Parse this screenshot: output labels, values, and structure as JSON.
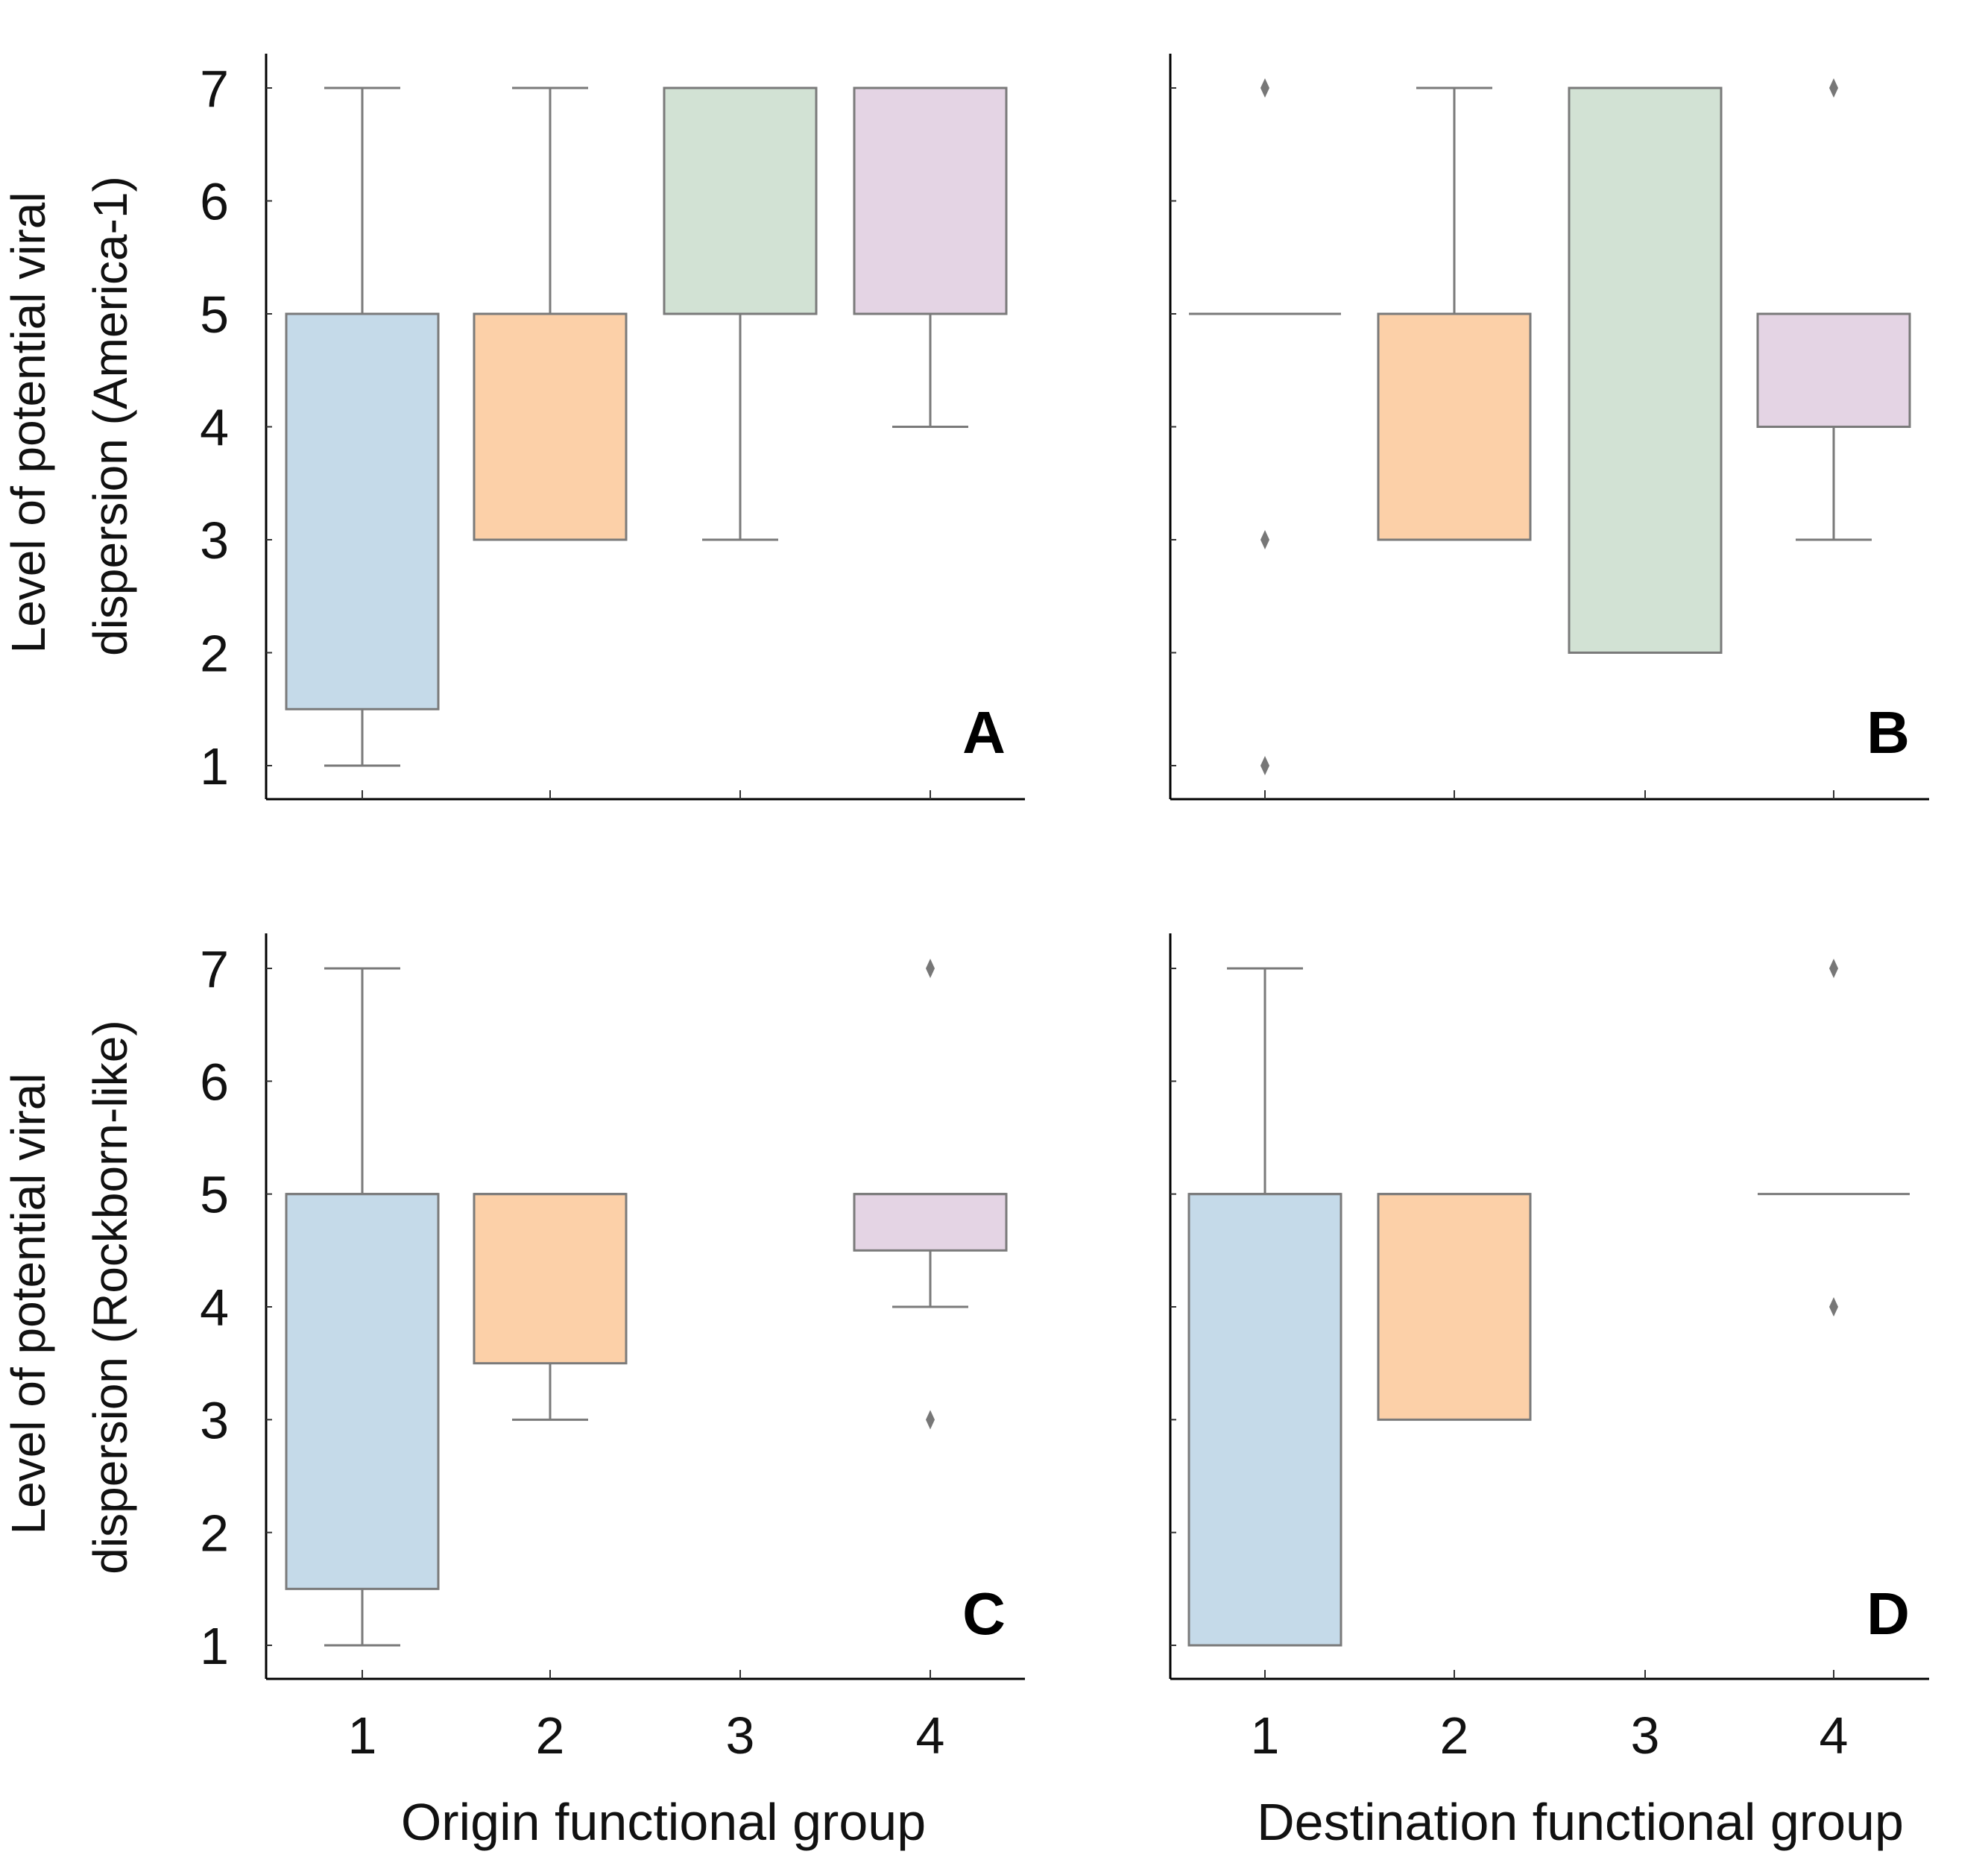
{
  "figure": {
    "row_labels": [
      [
        "Level of potential viral",
        "dispersion (America-1)"
      ],
      [
        "Level of potential viral",
        "dispersion (Rockborn-like)"
      ]
    ],
    "column_xlabels": [
      "Origin functional group",
      "Destination functional group"
    ]
  },
  "chart_data": [
    {
      "type": "box",
      "panel": "A",
      "xlabel": "Origin functional group",
      "ylabel": "Level of potential viral dispersion (America-1)",
      "categories": [
        "1",
        "2",
        "3",
        "4"
      ],
      "yticks": [
        1,
        2,
        3,
        4,
        5,
        6,
        7
      ],
      "ylim": [
        0.7,
        7.3
      ],
      "colors": [
        "#c5dae9",
        "#fcd0a8",
        "#d2e2d4",
        "#e4d4e4"
      ],
      "boxes": [
        {
          "q1": 1.5,
          "median": 5,
          "q3": 5,
          "whislo": 1,
          "whishi": 7,
          "fliers": []
        },
        {
          "q1": 3,
          "median": 5,
          "q3": 5,
          "whislo": 3,
          "whishi": 7,
          "fliers": []
        },
        {
          "q1": 5,
          "median": 7,
          "q3": 7,
          "whislo": 3,
          "whishi": 7,
          "fliers": []
        },
        {
          "q1": 5,
          "median": 7,
          "q3": 7,
          "whislo": 4,
          "whishi": 7,
          "fliers": []
        }
      ]
    },
    {
      "type": "box",
      "panel": "B",
      "xlabel": "Destination functional group",
      "ylabel": "",
      "categories": [
        "1",
        "2",
        "3",
        "4"
      ],
      "yticks": [
        1,
        2,
        3,
        4,
        5,
        6,
        7
      ],
      "ylim": [
        0.7,
        7.3
      ],
      "colors": [
        "#c5dae9",
        "#fcd0a8",
        "#d2e2d4",
        "#e4d4e4"
      ],
      "boxes": [
        {
          "q1": 5,
          "median": 5,
          "q3": 5,
          "whislo": 5,
          "whishi": 5,
          "fliers": [
            7,
            3,
            1
          ]
        },
        {
          "q1": 3,
          "median": 5,
          "q3": 5,
          "whislo": 3,
          "whishi": 7,
          "fliers": []
        },
        {
          "q1": 2,
          "median": 7,
          "q3": 7,
          "whislo": 2,
          "whishi": 7,
          "fliers": []
        },
        {
          "q1": 4,
          "median": 5,
          "q3": 5,
          "whislo": 3,
          "whishi": 5,
          "fliers": [
            7
          ]
        }
      ]
    },
    {
      "type": "box",
      "panel": "C",
      "xlabel": "Origin functional group",
      "ylabel": "Level of potential viral dispersion (Rockborn-like)",
      "categories": [
        "1",
        "2",
        "3",
        "4"
      ],
      "yticks": [
        1,
        2,
        3,
        4,
        5,
        6,
        7
      ],
      "ylim": [
        0.7,
        7.3
      ],
      "colors": [
        "#c5dae9",
        "#fcd0a8",
        "#d2e2d4",
        "#e4d4e4"
      ],
      "boxes": [
        {
          "q1": 1.5,
          "median": 5,
          "q3": 5,
          "whislo": 1,
          "whishi": 7,
          "fliers": []
        },
        {
          "q1": 3.5,
          "median": 5,
          "q3": 5,
          "whislo": 3,
          "whishi": 5,
          "fliers": []
        },
        null,
        {
          "q1": 4.5,
          "median": 5,
          "q3": 5,
          "whislo": 4,
          "whishi": 5,
          "fliers": [
            7,
            3
          ]
        }
      ]
    },
    {
      "type": "box",
      "panel": "D",
      "xlabel": "Destination functional group",
      "ylabel": "",
      "categories": [
        "1",
        "2",
        "3",
        "4"
      ],
      "yticks": [
        1,
        2,
        3,
        4,
        5,
        6,
        7
      ],
      "ylim": [
        0.7,
        7.3
      ],
      "colors": [
        "#c5dae9",
        "#fcd0a8",
        "#d2e2d4",
        "#e4d4e4"
      ],
      "boxes": [
        {
          "q1": 1,
          "median": 5,
          "q3": 5,
          "whislo": 1,
          "whishi": 7,
          "fliers": []
        },
        {
          "q1": 3,
          "median": 5,
          "q3": 5,
          "whislo": 3,
          "whishi": 5,
          "fliers": []
        },
        null,
        {
          "q1": 5,
          "median": 5,
          "q3": 5,
          "whislo": 5,
          "whishi": 5,
          "fliers": [
            7,
            4
          ]
        }
      ]
    }
  ]
}
